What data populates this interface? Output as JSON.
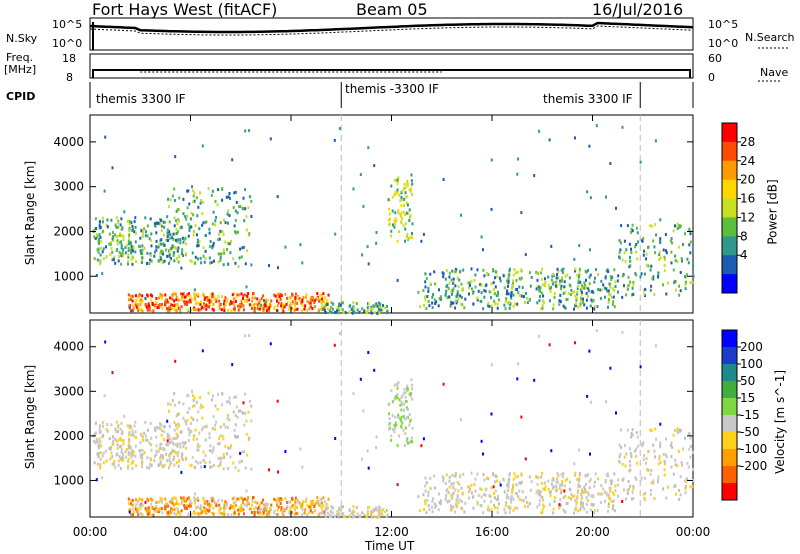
{
  "header": {
    "radar": "Fort Hays West (fitACF)",
    "beam": "Beam 05",
    "date": "16/Jul/2016"
  },
  "top_panels": {
    "nsky_label": "N.Sky",
    "nsky_top": "10^5",
    "nsky_bottom": "10^0",
    "nsearch_label": "N.Search",
    "nsearch_top": "10^5",
    "nsearch_bottom": "10^0",
    "freq_label_1": "Freq.",
    "freq_label_2": "[MHz]",
    "freq_top": "18",
    "freq_bottom": "8",
    "nave_label": "Nave",
    "nave_top": "60",
    "nave_bottom": "0",
    "cpid_label": "CPID",
    "cpid_segments": [
      "themis 3300 IF",
      "themis -3300 IF",
      "themis 3300 IF"
    ]
  },
  "chart_data": [
    {
      "type": "heatmap",
      "title": "",
      "quantity": "Power",
      "ylabel": "Slant Range [km]",
      "colorbar_label": "Power [dB]",
      "colorbar_ticks": [
        "28",
        "24",
        "20",
        "16",
        "12",
        "8",
        "4"
      ],
      "colorbar_colors": [
        "#ff0000",
        "#ff4c00",
        "#ff9a00",
        "#ffd700",
        "#c7e020",
        "#5dbd3c",
        "#2f9a8c",
        "#1b5cb0",
        "#0000ff"
      ],
      "y_ticks": [
        1000,
        2000,
        3000,
        4000
      ],
      "ylim": [
        180,
        4600
      ],
      "x_ticks": [
        "00:00",
        "04:00",
        "08:00",
        "12:00",
        "16:00",
        "20:00",
        "00:00"
      ],
      "xlim_hours": [
        0,
        24
      ]
    },
    {
      "type": "heatmap",
      "title": "",
      "quantity": "Velocity",
      "ylabel": "Slant Range [km]",
      "xlabel": "Time UT",
      "colorbar_label": "Velocity [m s^-1]",
      "colorbar_ticks": [
        "200",
        "100",
        "50",
        "15",
        "-15",
        "-50",
        "-100",
        "-200"
      ],
      "colorbar_colors": [
        "#0000ff",
        "#1a3cc8",
        "#1f8a8a",
        "#3fae3f",
        "#7fd83f",
        "#c8c8c8",
        "#ffd21a",
        "#ffa000",
        "#ff6000",
        "#ff0000"
      ],
      "y_ticks": [
        1000,
        2000,
        3000,
        4000
      ],
      "ylim": [
        180,
        4600
      ],
      "x_ticks": [
        "00:00",
        "04:00",
        "08:00",
        "12:00",
        "16:00",
        "20:00",
        "00:00"
      ],
      "xlim_hours": [
        0,
        24
      ]
    }
  ]
}
